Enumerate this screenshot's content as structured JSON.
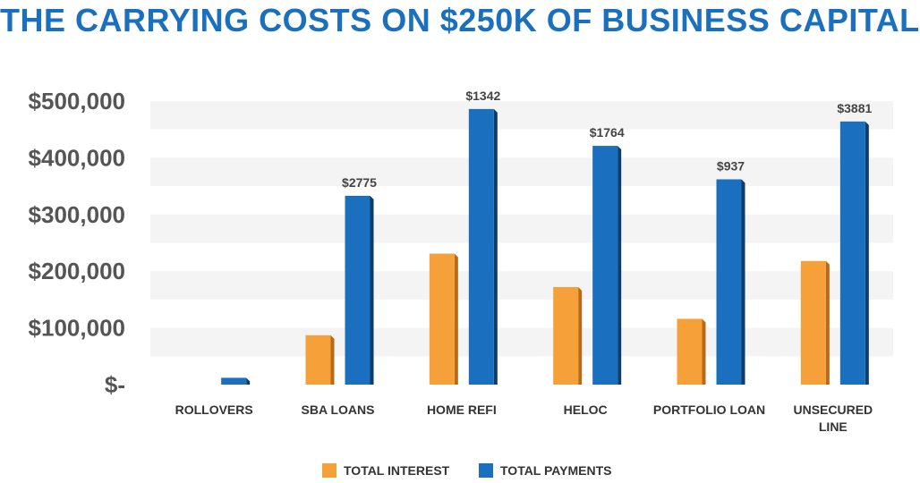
{
  "chart_data": {
    "type": "bar",
    "title": "THE CARRYING COSTS ON $250K OF BUSINESS CAPITAL",
    "categories": [
      [
        "ROLLOVERS"
      ],
      [
        "SBA LOANS"
      ],
      [
        "HOME REFI"
      ],
      [
        "HELOC"
      ],
      [
        "PORTFOLIO LOAN"
      ],
      [
        "UNSECURED",
        "LINE"
      ]
    ],
    "series": [
      {
        "name": "TOTAL INTEREST",
        "color": "#f6a03a",
        "values": [
          0,
          87000,
          231000,
          172000,
          116000,
          218000
        ]
      },
      {
        "name": "TOTAL PAYMENTS",
        "color": "#1a6fbf",
        "values": [
          12000,
          333000,
          486000,
          421000,
          362000,
          464000
        ]
      }
    ],
    "data_labels": [
      "",
      "$2775",
      "$1342",
      "$1764",
      "$937",
      "$3881"
    ],
    "y_ticks": [
      {
        "value": 0,
        "label": "$-"
      },
      {
        "value": 100000,
        "label": "$100,000"
      },
      {
        "value": 200000,
        "label": "$200,000"
      },
      {
        "value": 300000,
        "label": "$300,000"
      },
      {
        "value": 400000,
        "label": "$400,000"
      },
      {
        "value": 500000,
        "label": "$500,000"
      }
    ],
    "ylim": [
      0,
      500000
    ],
    "grid": true,
    "legend_position": "bottom"
  }
}
